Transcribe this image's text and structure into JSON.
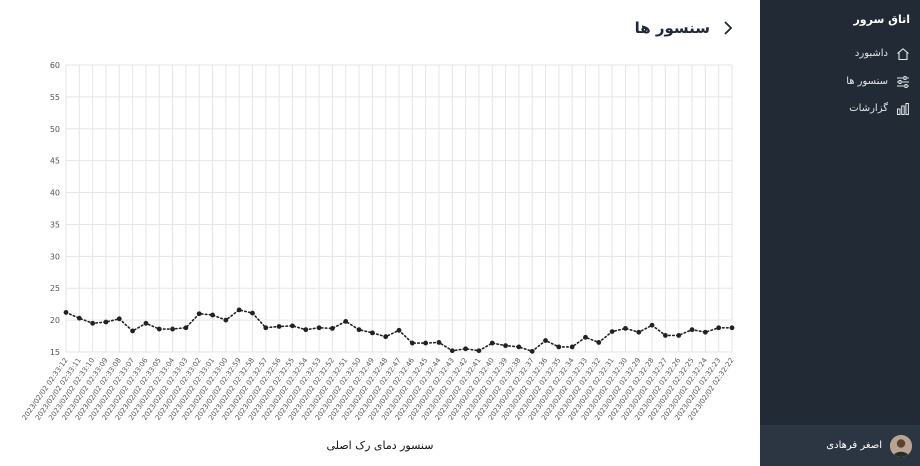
{
  "page": {
    "title": "سنسور ها"
  },
  "sidebar": {
    "brand": "اتاق سرور",
    "items": [
      {
        "label": "داشبورد",
        "icon": "home-icon"
      },
      {
        "label": "سنسور ها",
        "icon": "sliders-icon"
      },
      {
        "label": "گزارشات",
        "icon": "bar-chart-icon"
      }
    ],
    "user": {
      "name": "اصغر فرهادی"
    }
  },
  "colors": {
    "sidebar_bg": "#222a35",
    "line": "#222222",
    "grid": "#e5e5e5"
  },
  "chart_data": {
    "type": "line",
    "title": "",
    "xlabel": "سنسور دمای رک اصلی",
    "ylabel": "",
    "ylim": [
      15,
      60
    ],
    "yticks": [
      15,
      20,
      25,
      30,
      35,
      40,
      45,
      50,
      55,
      60
    ],
    "grid": true,
    "line_style": "dotted",
    "categories": [
      "2023/02/02 02:33:12",
      "2023/02/02 02:33:11",
      "2023/02/02 02:33:10",
      "2023/02/02 02:33:09",
      "2023/02/02 02:33:08",
      "2023/02/02 02:33:07",
      "2023/02/02 02:33:06",
      "2023/02/02 02:33:05",
      "2023/02/02 02:33:04",
      "2023/02/02 02:33:03",
      "2023/02/02 02:33:02",
      "2023/02/02 02:33:01",
      "2023/02/02 02:33:00",
      "2023/02/02 02:32:59",
      "2023/02/02 02:32:58",
      "2023/02/02 02:32:57",
      "2023/02/02 02:32:56",
      "2023/02/02 02:32:55",
      "2023/02/02 02:32:54",
      "2023/02/02 02:32:53",
      "2023/02/02 02:32:52",
      "2023/02/02 02:32:51",
      "2023/02/02 02:32:50",
      "2023/02/02 02:32:49",
      "2023/02/02 02:32:48",
      "2023/02/02 02:32:47",
      "2023/02/02 02:32:46",
      "2023/02/02 02:32:45",
      "2023/02/02 02:32:44",
      "2023/02/02 02:32:43",
      "2023/02/02 02:32:42",
      "2023/02/02 02:32:41",
      "2023/02/02 02:32:40",
      "2023/02/02 02:32:39",
      "2023/02/02 02:32:38",
      "2023/02/02 02:32:37",
      "2023/02/02 02:32:36",
      "2023/02/02 02:32:35",
      "2023/02/02 02:32:34",
      "2023/02/02 02:32:33",
      "2023/02/02 02:32:32",
      "2023/02/02 02:32:31",
      "2023/02/02 02:32:30",
      "2023/02/02 02:32:29",
      "2023/02/02 02:32:28",
      "2023/02/02 02:32:27",
      "2023/02/02 02:32:26",
      "2023/02/02 02:32:25",
      "2023/02/02 02:32:24",
      "2023/02/02 02:32:23",
      "2023/02/02 02:32:22"
    ],
    "values": [
      21.2,
      20.3,
      19.5,
      19.7,
      20.2,
      18.3,
      19.5,
      18.6,
      18.6,
      18.8,
      21.0,
      20.8,
      20.0,
      21.6,
      21.1,
      18.8,
      19.0,
      19.1,
      18.5,
      18.8,
      18.7,
      19.8,
      18.5,
      18.0,
      17.4,
      18.4,
      16.4,
      16.4,
      16.5,
      15.2,
      15.5,
      15.2,
      16.4,
      16.0,
      15.8,
      15.1,
      16.8,
      15.8,
      15.8,
      17.3,
      16.5,
      18.2,
      18.7,
      18.1,
      19.2,
      17.6,
      17.6,
      18.5,
      18.1,
      18.8,
      18.8
    ]
  }
}
